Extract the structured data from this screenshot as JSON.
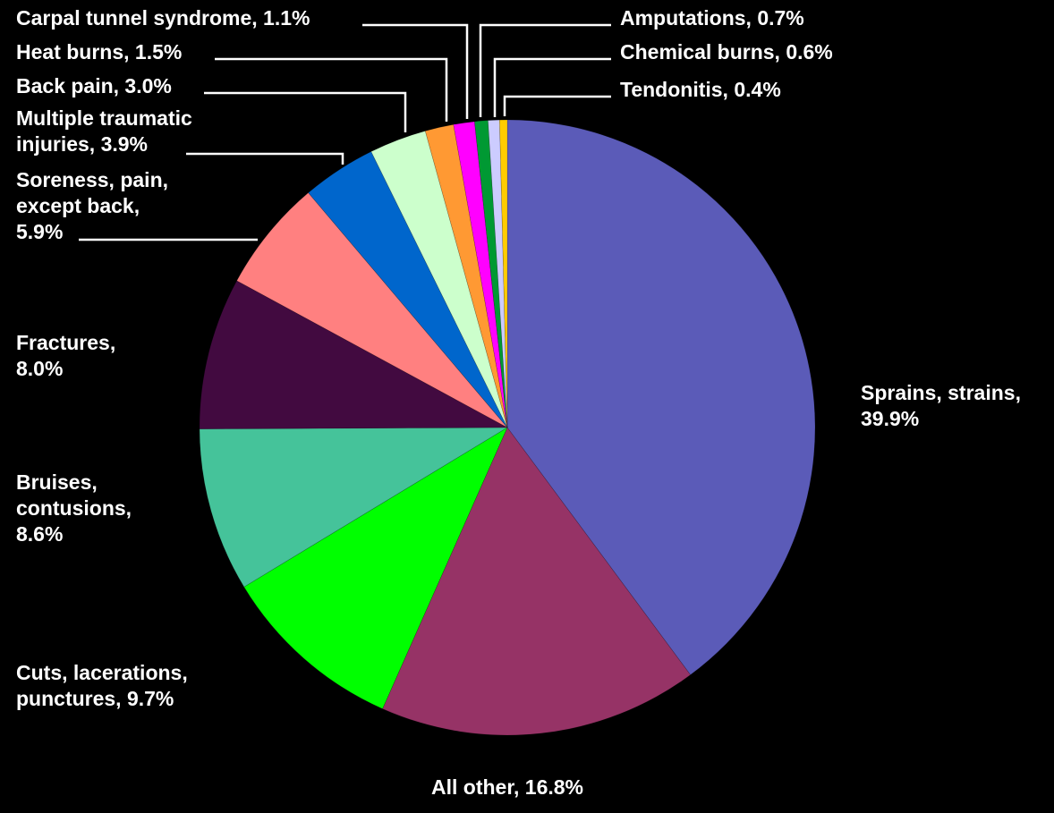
{
  "chart_data": {
    "type": "pie",
    "title": "",
    "slices": [
      {
        "name": "Sprains, strains",
        "value": 39.9,
        "lines": [
          "Sprains, strains,",
          "39.9%"
        ],
        "color": "#5B5BB8"
      },
      {
        "name": "All other",
        "value": 16.8,
        "lines": [
          "All other, 16.8%"
        ],
        "color": "#963366"
      },
      {
        "name": "Cuts, lacerations, punctures",
        "value": 9.7,
        "lines": [
          "Cuts, lacerations,",
          "punctures, 9.7%"
        ],
        "color": "#00FF00"
      },
      {
        "name": "Bruises, contusions",
        "value": 8.6,
        "lines": [
          "Bruises,",
          "contusions,",
          "8.6%"
        ],
        "color": "#45C39A"
      },
      {
        "name": "Fractures",
        "value": 8.0,
        "lines": [
          "Fractures,",
          "8.0%"
        ],
        "color": "#420A40"
      },
      {
        "name": "Soreness, pain, except back",
        "value": 5.9,
        "lines": [
          "Soreness, pain,",
          "except back,",
          "5.9%"
        ],
        "color": "#FF8080"
      },
      {
        "name": "Multiple traumatic injuries",
        "value": 3.9,
        "lines": [
          "Multiple traumatic",
          "injuries, 3.9%"
        ],
        "color": "#0066CC"
      },
      {
        "name": "Back pain",
        "value": 3.0,
        "lines": [
          "Back pain, 3.0%"
        ],
        "color": "#CCFFCC"
      },
      {
        "name": "Heat burns",
        "value": 1.5,
        "lines": [
          "Heat burns, 1.5%"
        ],
        "color": "#FF9933"
      },
      {
        "name": "Carpal tunnel syndrome",
        "value": 1.1,
        "lines": [
          "Carpal tunnel syndrome, 1.1%"
        ],
        "color": "#FF00FF"
      },
      {
        "name": "Amputations",
        "value": 0.7,
        "lines": [
          "Amputations, 0.7%"
        ],
        "color": "#009933"
      },
      {
        "name": "Chemical burns",
        "value": 0.6,
        "lines": [
          "Chemical burns, 0.6%"
        ],
        "color": "#CCCCFF"
      },
      {
        "name": "Tendonitis",
        "value": 0.4,
        "lines": [
          "Tendonitis, 0.4%"
        ],
        "color": "#FFCC00"
      }
    ],
    "legend": "none",
    "label_position": "outside with leader lines for small slices"
  }
}
